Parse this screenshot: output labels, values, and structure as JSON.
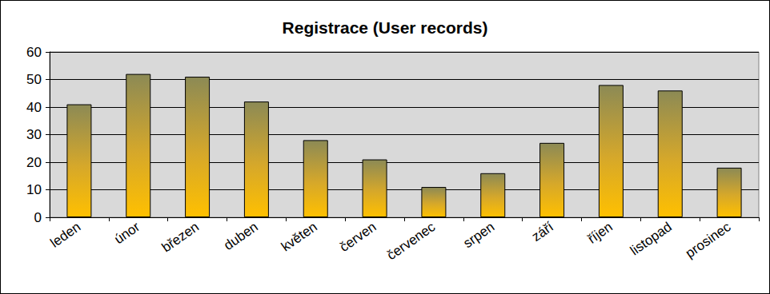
{
  "chart_data": {
    "type": "bar",
    "title": "Registrace (User records)",
    "categories": [
      "leden",
      "únor",
      "březen",
      "duben",
      "květen",
      "červen",
      "červenec",
      "srpen",
      "září",
      "říjen",
      "listopad",
      "prosinec"
    ],
    "values": [
      41,
      52,
      51,
      42,
      28,
      21,
      11,
      16,
      27,
      48,
      46,
      18
    ],
    "color": "#ffc000",
    "ylim": [
      0,
      60
    ],
    "yticks": [
      0,
      10,
      20,
      30,
      40,
      50,
      60
    ],
    "grid": true
  }
}
